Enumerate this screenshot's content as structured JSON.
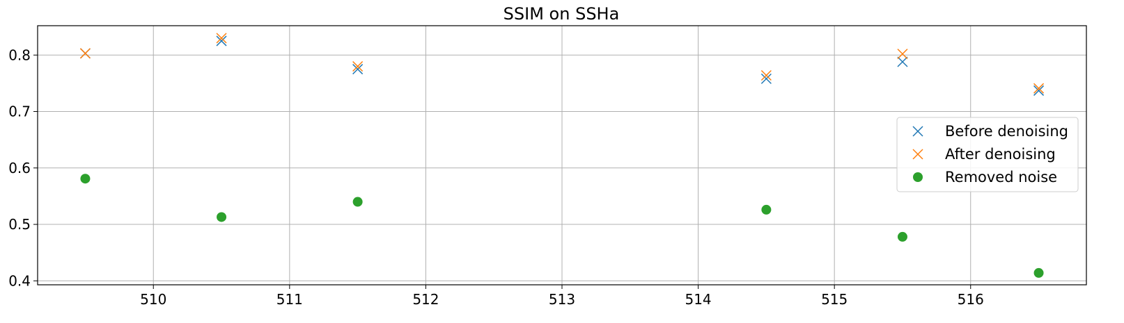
{
  "chart_data": {
    "type": "scatter",
    "title": "SSIM on SSHa",
    "xlabel": "",
    "ylabel": "",
    "xlim": [
      509.15,
      516.85
    ],
    "ylim": [
      0.393,
      0.852
    ],
    "xticks": [
      510,
      511,
      512,
      513,
      514,
      515,
      516
    ],
    "yticks": [
      0.4,
      0.5,
      0.6,
      0.7,
      0.8
    ],
    "xtick_labels": [
      "510",
      "511",
      "512",
      "513",
      "514",
      "515",
      "516"
    ],
    "ytick_labels": [
      "0.4",
      "0.5",
      "0.6",
      "0.7",
      "0.8"
    ],
    "grid": true,
    "legend_position": "center-right",
    "series": [
      {
        "name": "Before denoising",
        "marker": "x",
        "color": "#1f77b4",
        "x": [
          509.5,
          510.5,
          511.5,
          514.5,
          515.5,
          516.5
        ],
        "y": [
          0.803,
          0.825,
          0.775,
          0.758,
          0.788,
          0.737
        ]
      },
      {
        "name": "After denoising",
        "marker": "x",
        "color": "#ff7f0e",
        "x": [
          509.5,
          510.5,
          511.5,
          514.5,
          515.5,
          516.5
        ],
        "y": [
          0.803,
          0.83,
          0.78,
          0.764,
          0.802,
          0.741
        ]
      },
      {
        "name": "Removed noise",
        "marker": "o",
        "color": "#2ca02c",
        "x": [
          509.5,
          510.5,
          511.5,
          514.5,
          515.5,
          516.5
        ],
        "y": [
          0.581,
          0.513,
          0.54,
          0.526,
          0.478,
          0.414
        ]
      }
    ]
  }
}
